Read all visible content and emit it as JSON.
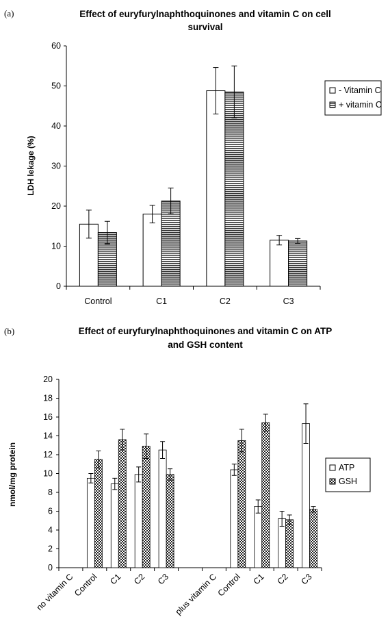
{
  "chart_data": [
    {
      "panel_label": "(a)",
      "type": "bar",
      "title_lines": [
        "Effect of euryfurylnaphthoquinones and vitamin C on cell",
        "survival"
      ],
      "xlabel": "",
      "ylabel": "LDH lekage (%)",
      "ylim": [
        0,
        60
      ],
      "yticks": [
        "0",
        "10",
        "20",
        "30",
        "40",
        "50",
        "60"
      ],
      "categories": [
        "Control",
        "C1",
        "C2",
        "C3"
      ],
      "legend_position": "right",
      "series": [
        {
          "name": "- Vitamin C",
          "values": [
            15.5,
            18.0,
            48.8,
            11.5
          ],
          "errors": [
            3.5,
            2.2,
            5.8,
            1.2
          ],
          "pattern": "none"
        },
        {
          "name": "+ vitamin C",
          "values": [
            13.4,
            21.3,
            48.5,
            11.3
          ],
          "errors": [
            2.8,
            3.2,
            6.5,
            0.6
          ],
          "pattern": "horizontal"
        }
      ]
    },
    {
      "panel_label": "(b)",
      "type": "bar",
      "title_lines": [
        "Effect of euryfurylnaphthoquinones and vitamin C on ATP",
        "and GSH content"
      ],
      "xlabel": "",
      "ylabel": "nmol/mg protein",
      "ylim": [
        0,
        20
      ],
      "yticks": [
        "0",
        "2",
        "4",
        "6",
        "8",
        "10",
        "12",
        "14",
        "16",
        "18",
        "20"
      ],
      "categories": [
        "no vitamin C",
        "Control",
        "C1",
        "C2",
        "C3",
        "",
        "plus vitamin C",
        "Control",
        "C1",
        "C2",
        "C3"
      ],
      "legend_position": "right",
      "series": [
        {
          "name": "ATP",
          "values": [
            null,
            9.5,
            8.9,
            9.9,
            12.5,
            null,
            null,
            10.4,
            6.5,
            5.2,
            15.3
          ],
          "errors": [
            null,
            0.5,
            0.6,
            0.8,
            0.9,
            null,
            null,
            0.6,
            0.7,
            0.8,
            2.1
          ],
          "pattern": "none"
        },
        {
          "name": "GSH",
          "values": [
            null,
            11.5,
            13.6,
            12.9,
            9.9,
            null,
            null,
            13.5,
            15.4,
            5.1,
            6.2
          ],
          "errors": [
            null,
            0.9,
            1.1,
            1.3,
            0.6,
            null,
            null,
            1.2,
            0.9,
            0.5,
            0.3
          ],
          "pattern": "checker"
        }
      ]
    }
  ]
}
